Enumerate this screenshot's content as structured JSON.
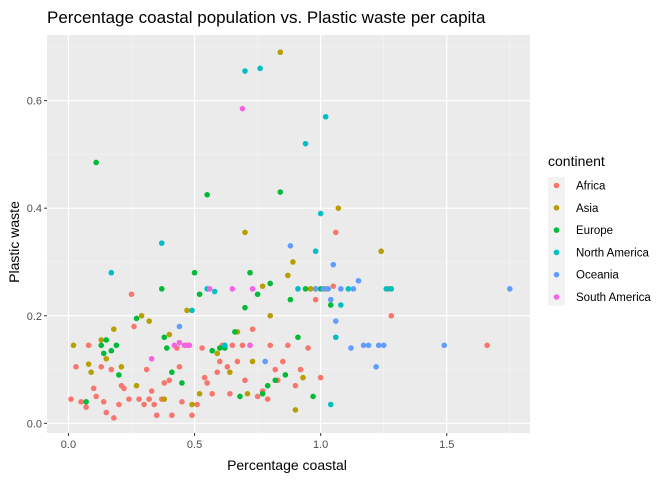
{
  "chart_data": {
    "type": "scatter",
    "title": "Percentage coastal population vs. Plastic waste per capita",
    "xlabel": "Percentage coastal",
    "ylabel": "Plastic waste",
    "xlim": [
      -0.085,
      1.83
    ],
    "ylim": [
      -0.018,
      0.722
    ],
    "x_ticks": [
      0.0,
      0.5,
      1.0,
      1.5
    ],
    "x_tick_labels": [
      "0.0",
      "0.5",
      "1.0",
      "1.5"
    ],
    "y_ticks": [
      0.0,
      0.2,
      0.4,
      0.6
    ],
    "y_tick_labels": [
      "0.0",
      "0.2",
      "0.4",
      "0.6"
    ],
    "grid": true,
    "legend": {
      "title": "continent",
      "placement": "right"
    },
    "series": [
      {
        "name": "Africa",
        "color": "#F8766D",
        "points": [
          [
            0.01,
            0.045
          ],
          [
            0.03,
            0.105
          ],
          [
            0.05,
            0.04
          ],
          [
            0.07,
            0.03
          ],
          [
            0.08,
            0.145
          ],
          [
            0.1,
            0.065
          ],
          [
            0.11,
            0.05
          ],
          [
            0.13,
            0.105
          ],
          [
            0.14,
            0.04
          ],
          [
            0.15,
            0.02
          ],
          [
            0.17,
            0.1
          ],
          [
            0.18,
            0.01
          ],
          [
            0.2,
            0.035
          ],
          [
            0.21,
            0.07
          ],
          [
            0.22,
            0.065
          ],
          [
            0.24,
            0.045
          ],
          [
            0.25,
            0.24
          ],
          [
            0.26,
            0.18
          ],
          [
            0.28,
            0.045
          ],
          [
            0.3,
            0.035
          ],
          [
            0.31,
            0.1
          ],
          [
            0.32,
            0.045
          ],
          [
            0.33,
            0.06
          ],
          [
            0.34,
            0.035
          ],
          [
            0.35,
            0.015
          ],
          [
            0.37,
            0.045
          ],
          [
            0.38,
            0.075
          ],
          [
            0.4,
            0.08
          ],
          [
            0.41,
            0.015
          ],
          [
            0.43,
            0.14
          ],
          [
            0.44,
            0.105
          ],
          [
            0.45,
            0.04
          ],
          [
            0.47,
            0.145
          ],
          [
            0.49,
            0.015
          ],
          [
            0.51,
            0.035
          ],
          [
            0.53,
            0.14
          ],
          [
            0.54,
            0.085
          ],
          [
            0.55,
            0.075
          ],
          [
            0.57,
            0.055
          ],
          [
            0.59,
            0.095
          ],
          [
            0.6,
            0.115
          ],
          [
            0.61,
            0.145
          ],
          [
            0.63,
            0.105
          ],
          [
            0.64,
            0.055
          ],
          [
            0.65,
            0.145
          ],
          [
            0.67,
            0.115
          ],
          [
            0.69,
            0.145
          ],
          [
            0.7,
            0.08
          ],
          [
            0.72,
            0.145
          ],
          [
            0.73,
            0.175
          ],
          [
            0.75,
            0.05
          ],
          [
            0.77,
            0.06
          ],
          [
            0.79,
            0.045
          ],
          [
            0.8,
            0.145
          ],
          [
            0.82,
            0.1
          ],
          [
            0.83,
            0.08
          ],
          [
            0.85,
            0.115
          ],
          [
            0.87,
            0.145
          ],
          [
            0.9,
            0.07
          ],
          [
            0.92,
            0.1
          ],
          [
            0.95,
            0.14
          ],
          [
            0.98,
            0.23
          ],
          [
            1.0,
            0.085
          ],
          [
            1.05,
            0.255
          ],
          [
            1.06,
            0.355
          ],
          [
            1.28,
            0.2
          ],
          [
            1.66,
            0.145
          ]
        ]
      },
      {
        "name": "Asia",
        "color": "#B79F00",
        "points": [
          [
            0.02,
            0.145
          ],
          [
            0.08,
            0.11
          ],
          [
            0.09,
            0.095
          ],
          [
            0.13,
            0.155
          ],
          [
            0.15,
            0.12
          ],
          [
            0.18,
            0.175
          ],
          [
            0.21,
            0.105
          ],
          [
            0.27,
            0.07
          ],
          [
            0.29,
            0.2
          ],
          [
            0.32,
            0.19
          ],
          [
            0.38,
            0.045
          ],
          [
            0.4,
            0.165
          ],
          [
            0.47,
            0.21
          ],
          [
            0.49,
            0.035
          ],
          [
            0.52,
            0.055
          ],
          [
            0.59,
            0.13
          ],
          [
            0.64,
            0.095
          ],
          [
            0.67,
            0.17
          ],
          [
            0.7,
            0.355
          ],
          [
            0.71,
            0.055
          ],
          [
            0.73,
            0.115
          ],
          [
            0.77,
            0.255
          ],
          [
            0.8,
            0.2
          ],
          [
            0.84,
            0.69
          ],
          [
            0.87,
            0.275
          ],
          [
            0.89,
            0.3
          ],
          [
            0.9,
            0.025
          ],
          [
            0.93,
            0.085
          ],
          [
            0.96,
            0.25
          ],
          [
            0.98,
            0.25
          ],
          [
            1.02,
            0.25
          ],
          [
            1.07,
            0.4
          ],
          [
            1.24,
            0.32
          ],
          [
            1.27,
            0.25
          ]
        ]
      },
      {
        "name": "Europe",
        "color": "#00BA38",
        "points": [
          [
            0.07,
            0.04
          ],
          [
            0.11,
            0.485
          ],
          [
            0.13,
            0.145
          ],
          [
            0.14,
            0.13
          ],
          [
            0.15,
            0.155
          ],
          [
            0.17,
            0.135
          ],
          [
            0.19,
            0.145
          ],
          [
            0.2,
            0.09
          ],
          [
            0.27,
            0.195
          ],
          [
            0.37,
            0.25
          ],
          [
            0.38,
            0.16
          ],
          [
            0.39,
            0.14
          ],
          [
            0.41,
            0.095
          ],
          [
            0.45,
            0.075
          ],
          [
            0.5,
            0.28
          ],
          [
            0.52,
            0.24
          ],
          [
            0.55,
            0.425
          ],
          [
            0.57,
            0.135
          ],
          [
            0.6,
            0.14
          ],
          [
            0.62,
            0.14
          ],
          [
            0.66,
            0.17
          ],
          [
            0.68,
            0.05
          ],
          [
            0.7,
            0.215
          ],
          [
            0.72,
            0.28
          ],
          [
            0.75,
            0.24
          ],
          [
            0.77,
            0.055
          ],
          [
            0.79,
            0.07
          ],
          [
            0.8,
            0.26
          ],
          [
            0.82,
            0.08
          ],
          [
            0.84,
            0.43
          ],
          [
            0.86,
            0.09
          ],
          [
            0.88,
            0.23
          ],
          [
            0.91,
            0.16
          ],
          [
            0.94,
            0.25
          ],
          [
            0.97,
            0.05
          ],
          [
            1.0,
            0.25
          ],
          [
            1.04,
            0.22
          ]
        ]
      },
      {
        "name": "North America",
        "color": "#00BFC4",
        "points": [
          [
            0.17,
            0.28
          ],
          [
            0.37,
            0.335
          ],
          [
            0.49,
            0.21
          ],
          [
            0.55,
            0.25
          ],
          [
            0.58,
            0.245
          ],
          [
            0.62,
            0.145
          ],
          [
            0.7,
            0.655
          ],
          [
            0.76,
            0.66
          ],
          [
            0.91,
            0.25
          ],
          [
            0.94,
            0.52
          ],
          [
            0.98,
            0.32
          ],
          [
            1.0,
            0.39
          ],
          [
            1.02,
            0.57
          ],
          [
            1.04,
            0.035
          ],
          [
            1.06,
            0.16
          ],
          [
            1.08,
            0.22
          ],
          [
            1.11,
            0.25
          ],
          [
            1.26,
            0.25
          ],
          [
            1.28,
            0.25
          ]
        ]
      },
      {
        "name": "Oceania",
        "color": "#619CFF",
        "points": [
          [
            0.44,
            0.18
          ],
          [
            0.78,
            0.115
          ],
          [
            0.88,
            0.33
          ],
          [
            0.98,
            0.25
          ],
          [
            1.01,
            0.25
          ],
          [
            1.03,
            0.25
          ],
          [
            1.04,
            0.23
          ],
          [
            1.05,
            0.295
          ],
          [
            1.06,
            0.19
          ],
          [
            1.08,
            0.25
          ],
          [
            1.12,
            0.14
          ],
          [
            1.13,
            0.25
          ],
          [
            1.15,
            0.265
          ],
          [
            1.17,
            0.145
          ],
          [
            1.19,
            0.145
          ],
          [
            1.22,
            0.105
          ],
          [
            1.23,
            0.145
          ],
          [
            1.25,
            0.145
          ],
          [
            1.49,
            0.145
          ],
          [
            1.75,
            0.25
          ]
        ]
      },
      {
        "name": "South America",
        "color": "#F564E3",
        "points": [
          [
            0.33,
            0.12
          ],
          [
            0.42,
            0.145
          ],
          [
            0.44,
            0.15
          ],
          [
            0.46,
            0.145
          ],
          [
            0.48,
            0.145
          ],
          [
            0.56,
            0.25
          ],
          [
            0.65,
            0.25
          ],
          [
            0.69,
            0.585
          ],
          [
            0.72,
            0.145
          ],
          [
            0.73,
            0.25
          ]
        ]
      }
    ]
  }
}
